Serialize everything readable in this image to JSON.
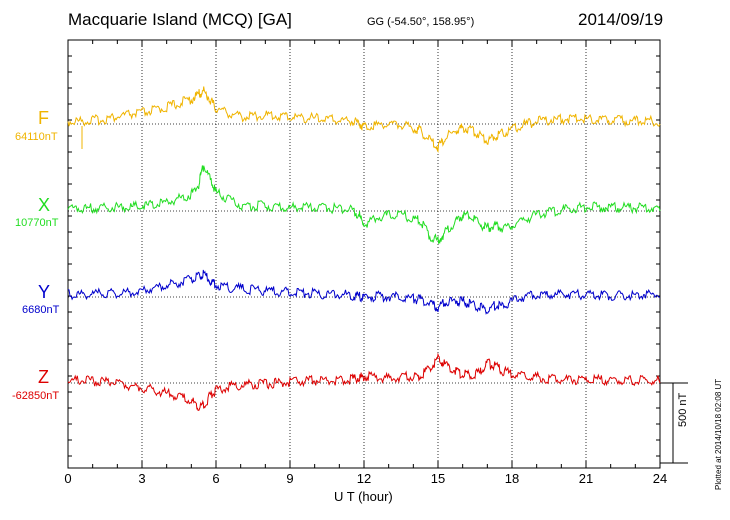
{
  "header": {
    "title": "Macquarie Island (MCQ)  [GA]",
    "coords": "GG (-54.50°, 158.95°)",
    "date": "2014/09/19"
  },
  "footer": {
    "plotted": "Plotted at 2014/10/18 02:08 UT",
    "scale_label": "500 nT"
  },
  "chart_data": {
    "type": "line",
    "xlabel": "U T (hour)",
    "xlim": [
      0,
      24
    ],
    "xticks": [
      "0",
      "3",
      "6",
      "9",
      "12",
      "15",
      "18",
      "21",
      "24"
    ],
    "scale_bar_nT": 500,
    "x": [
      0,
      0.5,
      1,
      1.5,
      2,
      2.5,
      3,
      3.5,
      4,
      4.5,
      5,
      5.3,
      5.5,
      5.8,
      6,
      6.5,
      7,
      7.5,
      8,
      8.5,
      9,
      9.5,
      10,
      10.5,
      11,
      11.5,
      11.8,
      12,
      12.5,
      13,
      13.5,
      14,
      14.3,
      14.7,
      15,
      15.3,
      15.7,
      16,
      16.3,
      16.7,
      17,
      17.3,
      17.6,
      18,
      18.5,
      19,
      19.5,
      20,
      20.5,
      21,
      21.5,
      22,
      22.5,
      23,
      23.5,
      24
    ],
    "series": [
      {
        "name": "F",
        "color": "#f0b400",
        "baseline_label": "64110nT",
        "values": [
          0,
          2,
          8,
          15,
          30,
          45,
          55,
          70,
          90,
          115,
          140,
          170,
          190,
          130,
          80,
          55,
          30,
          35,
          40,
          35,
          30,
          25,
          20,
          15,
          10,
          5,
          -10,
          -30,
          -20,
          -15,
          -20,
          -40,
          -60,
          -120,
          -160,
          -100,
          -60,
          -40,
          -50,
          -80,
          -120,
          -90,
          -70,
          -50,
          -20,
          0,
          10,
          15,
          20,
          18,
          15,
          10,
          5,
          5,
          3,
          0
        ]
      },
      {
        "name": "X",
        "color": "#22dd22",
        "baseline_label": "10770nT",
        "values": [
          0,
          0,
          2,
          5,
          8,
          10,
          15,
          25,
          40,
          60,
          90,
          150,
          270,
          170,
          100,
          60,
          20,
          15,
          20,
          10,
          5,
          5,
          5,
          3,
          0,
          -5,
          -40,
          -100,
          -60,
          -40,
          -40,
          -60,
          -80,
          -180,
          -200,
          -150,
          -80,
          -40,
          -50,
          -100,
          -120,
          -110,
          -120,
          -100,
          -70,
          -40,
          -20,
          -10,
          0,
          10,
          10,
          5,
          5,
          5,
          3,
          0
        ]
      },
      {
        "name": "Y",
        "color": "#0000cc",
        "baseline_label": "6680nT",
        "values": [
          0,
          0,
          3,
          5,
          10,
          15,
          25,
          45,
          55,
          75,
          95,
          110,
          125,
          85,
          60,
          45,
          35,
          30,
          25,
          20,
          15,
          10,
          5,
          3,
          0,
          -5,
          -10,
          -20,
          -10,
          -15,
          -15,
          -25,
          -35,
          -60,
          -80,
          -50,
          -40,
          -40,
          -60,
          -80,
          -100,
          -70,
          -70,
          -40,
          -15,
          0,
          -5,
          0,
          0,
          0,
          -3,
          -5,
          -5,
          -3,
          0,
          0
        ]
      },
      {
        "name": "Z",
        "color": "#dd0000",
        "baseline_label": "-62850nT",
        "values": [
          0,
          0,
          -3,
          -8,
          -15,
          -30,
          -45,
          -60,
          -80,
          -100,
          -130,
          -160,
          -150,
          -90,
          -60,
          -40,
          -30,
          -25,
          -20,
          -15,
          -10,
          -5,
          0,
          0,
          0,
          5,
          20,
          25,
          20,
          15,
          20,
          25,
          30,
          80,
          140,
          100,
          60,
          40,
          35,
          45,
          110,
          90,
          60,
          40,
          30,
          20,
          10,
          5,
          5,
          5,
          3,
          0,
          0,
          0,
          -2,
          0
        ]
      }
    ]
  }
}
